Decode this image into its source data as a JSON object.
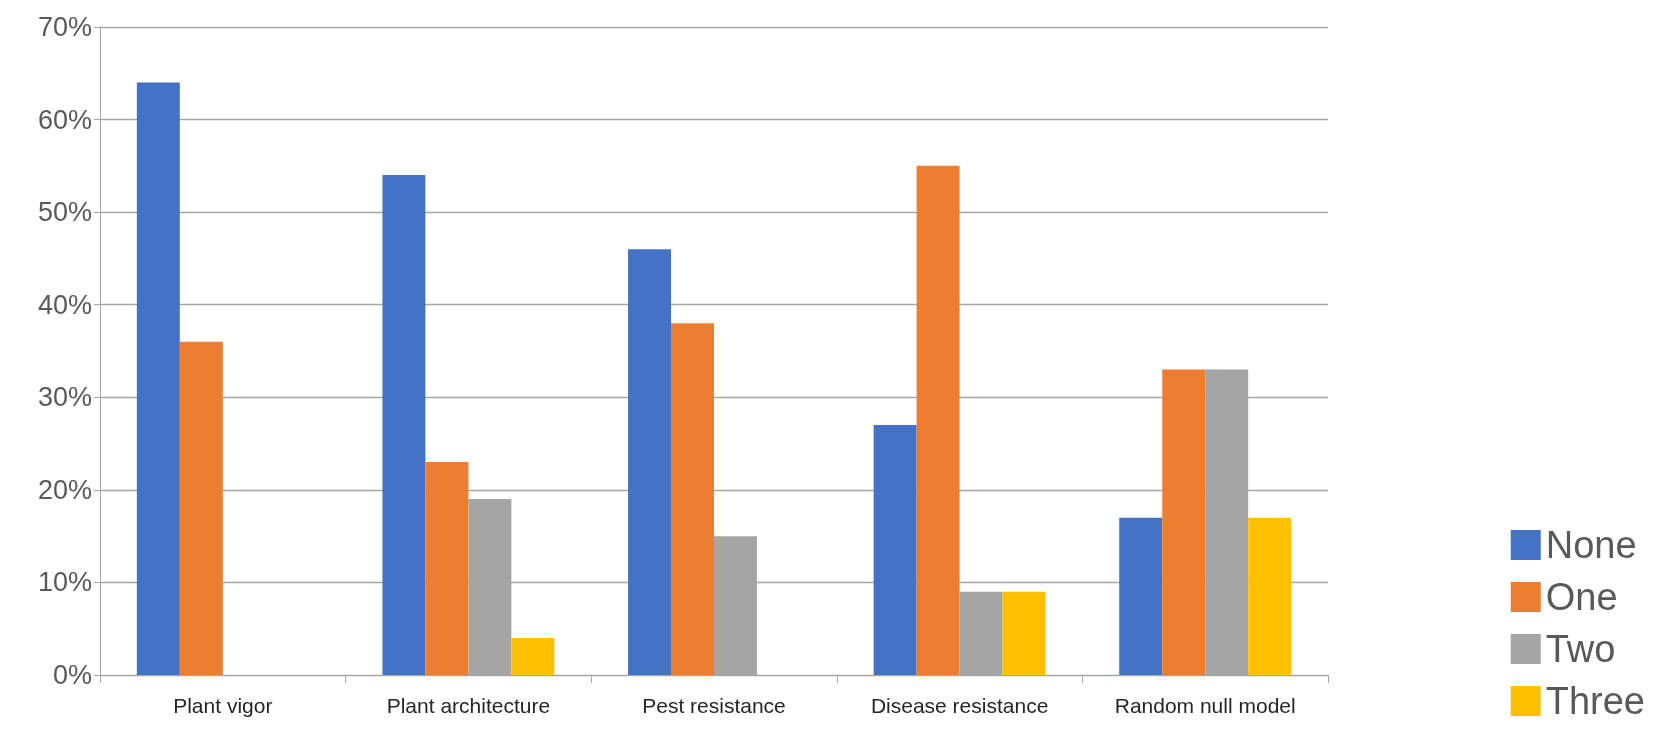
{
  "chart_data": {
    "type": "bar",
    "categories": [
      "Plant vigor",
      "Plant architecture",
      "Pest resistance",
      "Disease resistance",
      "Random null model"
    ],
    "series": [
      {
        "name": "None",
        "color": "#4472c4",
        "values": [
          64,
          54,
          46,
          27,
          17
        ]
      },
      {
        "name": "One",
        "color": "#ed7d31",
        "values": [
          36,
          23,
          38,
          55,
          33
        ]
      },
      {
        "name": "Two",
        "color": "#a5a5a5",
        "values": [
          0,
          19,
          15,
          9,
          33
        ]
      },
      {
        "name": "Three",
        "color": "#ffc000",
        "values": [
          0,
          4,
          0,
          9,
          17
        ]
      }
    ],
    "ylim": [
      0,
      70
    ],
    "yticks": [
      {
        "value": 0,
        "label": "0%"
      },
      {
        "value": 10,
        "label": "10%"
      },
      {
        "value": 20,
        "label": "20%"
      },
      {
        "value": 30,
        "label": "30%"
      },
      {
        "value": 40,
        "label": "40%"
      },
      {
        "value": 50,
        "label": "50%"
      },
      {
        "value": 60,
        "label": "60%"
      },
      {
        "value": 70,
        "label": "70%"
      }
    ],
    "grid": "y",
    "legend": "bottom right"
  }
}
